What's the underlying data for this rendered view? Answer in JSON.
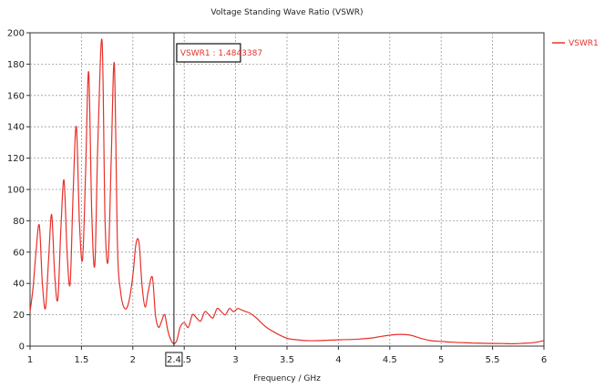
{
  "chart_data": {
    "type": "line",
    "title": "Voltage Standing Wave Ratio (VSWR)",
    "xlabel": "Frequency / GHz",
    "ylabel": "",
    "xlim": [
      1,
      6
    ],
    "ylim": [
      0,
      200
    ],
    "xticks": [
      1,
      1.5,
      2,
      2.5,
      3,
      3.5,
      4,
      4.5,
      5,
      5.5,
      6
    ],
    "xtick_labels": [
      "1",
      "1.5",
      "2",
      "2.5",
      "3",
      "3.5",
      "4",
      "4.5",
      "5",
      "5.5",
      "6"
    ],
    "yticks": [
      0,
      20,
      40,
      60,
      80,
      100,
      120,
      140,
      160,
      180,
      200
    ],
    "ytick_labels": [
      "0",
      "20",
      "40",
      "60",
      "80",
      "100",
      "120",
      "140",
      "160",
      "180",
      "200"
    ],
    "grid": true,
    "legend": "top-right",
    "colors": {
      "series": "#e8302a",
      "grid": "#9a9a9a",
      "axis": "#333333",
      "marker": "#111111"
    },
    "series": [
      {
        "name": "VSWR1",
        "x": [
          1.0,
          1.03,
          1.06,
          1.09,
          1.12,
          1.15,
          1.18,
          1.21,
          1.24,
          1.27,
          1.3,
          1.33,
          1.36,
          1.39,
          1.42,
          1.45,
          1.48,
          1.51,
          1.54,
          1.57,
          1.6,
          1.63,
          1.66,
          1.7,
          1.73,
          1.76,
          1.79,
          1.82,
          1.85,
          1.88,
          1.92,
          1.96,
          2.0,
          2.03,
          2.06,
          2.09,
          2.12,
          2.15,
          2.19,
          2.22,
          2.25,
          2.28,
          2.31,
          2.34,
          2.37,
          2.4,
          2.43,
          2.46,
          2.5,
          2.54,
          2.58,
          2.62,
          2.66,
          2.7,
          2.74,
          2.78,
          2.82,
          2.86,
          2.9,
          2.94,
          2.98,
          3.02,
          3.06,
          3.1,
          3.14,
          3.2,
          3.3,
          3.4,
          3.5,
          3.6,
          3.7,
          3.8,
          3.9,
          4.0,
          4.1,
          4.2,
          4.3,
          4.4,
          4.5,
          4.6,
          4.7,
          4.8,
          4.9,
          5.0,
          5.1,
          5.2,
          5.3,
          5.4,
          5.5,
          5.6,
          5.7,
          5.8,
          5.9,
          6.0
        ],
        "y": [
          22,
          38,
          62,
          77,
          40,
          24,
          55,
          84,
          45,
          30,
          75,
          106,
          60,
          40,
          100,
          140,
          80,
          55,
          110,
          175,
          85,
          52,
          130,
          195,
          80,
          55,
          120,
          180,
          65,
          35,
          24,
          28,
          45,
          65,
          66,
          38,
          25,
          35,
          44,
          20,
          12,
          16,
          20,
          10,
          4,
          1.5,
          4,
          12,
          15,
          12,
          20,
          18,
          16,
          22,
          20,
          18,
          24,
          22,
          20,
          24,
          22,
          24,
          23,
          22,
          21,
          18,
          12,
          8,
          5,
          4,
          3.5,
          3.5,
          3.8,
          4,
          4.2,
          4.5,
          5,
          6,
          7,
          7.5,
          7,
          5,
          3.5,
          3,
          2.5,
          2.2,
          2,
          1.8,
          1.7,
          1.6,
          1.5,
          1.8,
          2.2,
          3.5
        ]
      }
    ],
    "marker": {
      "x": 2.4,
      "x_label": "2.4",
      "label": "VSWR1 : 1.4843387"
    }
  }
}
